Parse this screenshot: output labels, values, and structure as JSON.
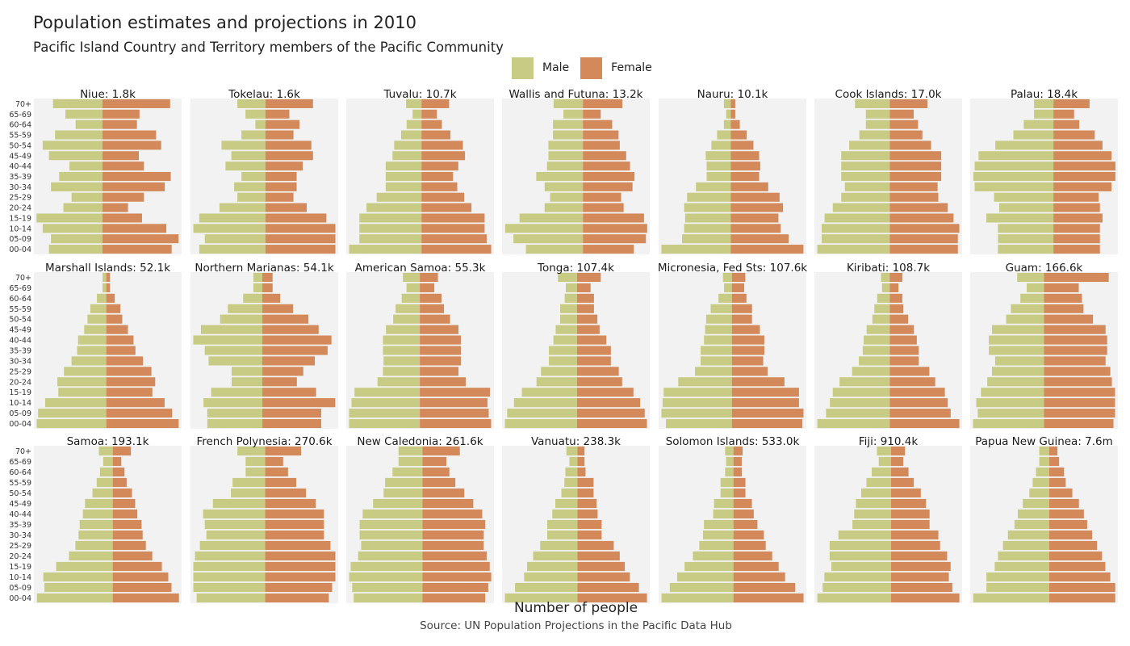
{
  "chart_data": {
    "type": "bar",
    "title": "Population estimates and projections in 2010",
    "subtitle": "Pacific Island Country and Territory members of the Pacific Community",
    "xlabel": "Number of people",
    "caption": "Source: UN Population Projections in the Pacific Data Hub",
    "legend": {
      "position": "top",
      "entries": [
        "Male",
        "Female"
      ]
    },
    "colors": {
      "Male": "#c8cb84",
      "Female": "#d4895a",
      "panel_bg": "#f2f2f2"
    },
    "age_groups": [
      "00-04",
      "05-09",
      "10-14",
      "15-19",
      "20-24",
      "25-29",
      "30-34",
      "35-39",
      "40-44",
      "45-49",
      "50-54",
      "55-59",
      "60-64",
      "65-69",
      "70+"
    ],
    "series_order": [
      "Male",
      "Female"
    ],
    "note": "Values are proportions of each country's total population by age group and sex, estimated from bar lengths; each panel has its own x scale.",
    "panels": [
      {
        "label": "Niue: 1.8k",
        "male": [
          0.0419,
          0.0403,
          0.0468,
          0.0516,
          0.0306,
          0.0242,
          0.0403,
          0.0339,
          0.0258,
          0.0419,
          0.0468,
          0.0371,
          0.021,
          0.029,
          0.0387
        ],
        "female": [
          0.0542,
          0.0596,
          0.05,
          0.031,
          0.02,
          0.0325,
          0.0488,
          0.0535,
          0.0325,
          0.0285,
          0.046,
          0.042,
          0.027,
          0.029,
          0.053
        ]
      },
      {
        "label": "Tokelau: 1.6k",
        "male": [
          0.0514,
          0.0471,
          0.056,
          0.0514,
          0.0357,
          0.0218,
          0.0243,
          0.0186,
          0.031,
          0.0265,
          0.0341,
          0.0186,
          0.0078,
          0.0155,
          0.0218
        ]
      },
      {
        "label": "Tuvalu: 10.7k",
        "male": [
          0.055,
          0.0472,
          0.0472,
          0.0472,
          0.0418,
          0.0341,
          0.0272,
          0.0272,
          0.0272,
          0.022,
          0.0208,
          0.0155,
          0.0113,
          0.0068,
          0.0117
        ]
      },
      {
        "label": "Wallis and Futuna: 13.2k",
        "male": [
          0.0448,
          0.0546,
          0.0611,
          0.0498,
          0.0301,
          0.0258,
          0.0301,
          0.0367,
          0.0282,
          0.0271,
          0.0271,
          0.0235,
          0.0235,
          0.0153,
          0.023
        ]
      },
      {
        "label": "Nauru: 10.1k",
        "male": [
          0.061,
          0.0428,
          0.041,
          0.0401,
          0.041,
          0.0384,
          0.0306,
          0.0212,
          0.0212,
          0.022,
          0.017,
          0.012,
          0.006,
          0.004,
          0.006
        ]
      },
      {
        "label": "Cook Islands: 17.0k",
        "male": [
          0.05,
          0.047,
          0.047,
          0.045,
          0.0393,
          0.0335,
          0.031,
          0.0335,
          0.0335,
          0.0335,
          0.028,
          0.021,
          0.0165,
          0.0165,
          0.024
        ]
      },
      {
        "label": "Palau: 18.4k",
        "male": [
          0.043,
          0.043,
          0.043,
          0.052,
          0.042,
          0.046,
          0.061,
          0.062,
          0.061,
          0.058,
          0.045,
          0.031,
          0.023,
          0.015,
          0.015
        ]
      },
      {
        "label": "Marshall Islands: 52.1k",
        "male": [
          0.074,
          0.0725,
          0.065,
          0.051,
          0.052,
          0.045,
          0.037,
          0.031,
          0.03,
          0.0235,
          0.02,
          0.017,
          0.01,
          0.004,
          0.004
        ]
      },
      {
        "label": "Northern Marianas: 54.1k",
        "male": [
          0.043,
          0.043,
          0.046,
          0.04,
          0.024,
          0.024,
          0.042,
          0.045,
          0.054,
          0.048,
          0.033,
          0.027,
          0.015,
          0.007,
          0.007
        ]
      },
      {
        "label": "American Samoa: 55.3k",
        "male": [
          0.0585,
          0.0585,
          0.0565,
          0.054,
          0.035,
          0.0305,
          0.03,
          0.0305,
          0.0305,
          0.028,
          0.022,
          0.02,
          0.015,
          0.011,
          0.014
        ]
      },
      {
        "label": "Tonga: 107.4k",
        "male": [
          0.064,
          0.062,
          0.056,
          0.049,
          0.036,
          0.032,
          0.025,
          0.025,
          0.021,
          0.019,
          0.015,
          0.015,
          0.011,
          0.01,
          0.017
        ]
      },
      {
        "label": "Micronesia, Fed Sts: 107.6k",
        "male": [
          0.059,
          0.063,
          0.062,
          0.061,
          0.048,
          0.033,
          0.028,
          0.028,
          0.025,
          0.024,
          0.023,
          0.019,
          0.012,
          0.007,
          0.008
        ]
      },
      {
        "label": "Kiribati: 108.7k",
        "male": [
          0.075,
          0.066,
          0.062,
          0.059,
          0.052,
          0.039,
          0.032,
          0.028,
          0.027,
          0.024,
          0.018,
          0.016,
          0.013,
          0.008,
          0.009
        ]
      },
      {
        "label": "Guam: 166.6k",
        "male": [
          0.045,
          0.042,
          0.043,
          0.04,
          0.036,
          0.033,
          0.031,
          0.035,
          0.035,
          0.033,
          0.024,
          0.021,
          0.015,
          0.011,
          0.017
        ]
      },
      {
        "label": "Samoa: 193.1k",
        "male": [
          0.071,
          0.064,
          0.065,
          0.053,
          0.041,
          0.035,
          0.032,
          0.031,
          0.028,
          0.026,
          0.019,
          0.015,
          0.012,
          0.009,
          0.013
        ]
      },
      {
        "label": "French Polynesia: 270.6k",
        "male": [
          0.042,
          0.044,
          0.044,
          0.044,
          0.043,
          0.04,
          0.036,
          0.037,
          0.038,
          0.032,
          0.021,
          0.02,
          0.012,
          0.012,
          0.017
        ]
      },
      {
        "label": "New Caledonia: 261.6k",
        "male": [
          0.046,
          0.047,
          0.049,
          0.048,
          0.043,
          0.041,
          0.042,
          0.042,
          0.04,
          0.033,
          0.026,
          0.025,
          0.02,
          0.016,
          0.016
        ]
      },
      {
        "label": "Vanuatu: 238.3k",
        "male": [
          0.072,
          0.062,
          0.053,
          0.05,
          0.044,
          0.037,
          0.03,
          0.03,
          0.025,
          0.022,
          0.016,
          0.013,
          0.012,
          0.008,
          0.011
        ]
      },
      {
        "label": "Solomon Islands: 533.0k",
        "male": [
          0.078,
          0.069,
          0.061,
          0.053,
          0.044,
          0.037,
          0.033,
          0.032,
          0.022,
          0.021,
          0.014,
          0.014,
          0.009,
          0.008,
          0.009
        ]
      },
      {
        "label": "Fiji: 910.4k",
        "male": [
          0.042,
          0.039,
          0.038,
          0.034,
          0.035,
          0.035,
          0.03,
          0.022,
          0.021,
          0.02,
          0.017,
          0.014,
          0.011,
          0.007,
          0.008
        ]
      },
      {
        "label": "Papua New Guinea: 7.6m",
        "male": [
          0.046,
          0.038,
          0.038,
          0.033,
          0.031,
          0.028,
          0.025,
          0.021,
          0.019,
          0.016,
          0.012,
          0.01,
          0.008,
          0.006,
          0.006
        ]
      }
    ],
    "female_values_by_panel": [
      [
        0.0542,
        0.0596,
        0.05,
        0.031,
        0.02,
        0.0325,
        0.0488,
        0.0535,
        0.0325,
        0.0285,
        0.046,
        0.042,
        0.027,
        0.029,
        0.053
      ],
      [
        0.0544,
        0.0544,
        0.0544,
        0.0474,
        0.0321,
        0.0218,
        0.0243,
        0.0243,
        0.029,
        0.037,
        0.0357,
        0.0218,
        0.0265,
        0.0186,
        0.037
      ],
      [
        0.053,
        0.0496,
        0.048,
        0.048,
        0.038,
        0.0325,
        0.0272,
        0.024,
        0.028,
        0.0331,
        0.0315,
        0.022,
        0.0155,
        0.0117,
        0.021
      ],
      [
        0.04,
        0.0495,
        0.0505,
        0.048,
        0.032,
        0.03,
        0.039,
        0.0405,
        0.037,
        0.034,
        0.029,
        0.028,
        0.023,
        0.014,
        0.031
      ],
      [
        0.064,
        0.051,
        0.044,
        0.042,
        0.046,
        0.043,
        0.033,
        0.025,
        0.026,
        0.025,
        0.02,
        0.014,
        0.008,
        0.004,
        0.004
      ]
    ]
  },
  "render_female": [
    [
      0.0542,
      0.0596,
      0.05,
      0.031,
      0.02,
      0.0325,
      0.0488,
      0.0535,
      0.0325,
      0.0285,
      0.046,
      0.042,
      0.027,
      0.029,
      0.053
    ],
    [
      0.0544,
      0.0544,
      0.0544,
      0.0474,
      0.0321,
      0.0218,
      0.0243,
      0.0243,
      0.029,
      0.037,
      0.0357,
      0.0218,
      0.0265,
      0.0186,
      0.037
    ],
    [
      0.053,
      0.0496,
      0.048,
      0.048,
      0.038,
      0.0325,
      0.0272,
      0.024,
      0.028,
      0.0331,
      0.0315,
      0.022,
      0.0155,
      0.0117,
      0.021
    ],
    [
      0.04,
      0.0495,
      0.0505,
      0.048,
      0.032,
      0.03,
      0.039,
      0.0405,
      0.037,
      0.034,
      0.029,
      0.028,
      0.023,
      0.014,
      0.031
    ],
    [
      0.064,
      0.051,
      0.044,
      0.042,
      0.046,
      0.043,
      0.033,
      0.025,
      0.026,
      0.025,
      0.02,
      0.014,
      0.008,
      0.004,
      0.004
    ],
    [
      0.047,
      0.047,
      0.048,
      0.044,
      0.04,
      0.0335,
      0.033,
      0.0355,
      0.0355,
      0.0355,
      0.0285,
      0.0225,
      0.0195,
      0.0165,
      0.026
    ],
    [
      0.036,
      0.036,
      0.036,
      0.038,
      0.036,
      0.035,
      0.045,
      0.048,
      0.048,
      0.045,
      0.038,
      0.032,
      0.02,
      0.016,
      0.028
    ],
    [
      0.077,
      0.07,
      0.062,
      0.049,
      0.052,
      0.048,
      0.039,
      0.031,
      0.029,
      0.023,
      0.017,
      0.015,
      0.009,
      0.004,
      0.004
    ],
    [
      0.046,
      0.046,
      0.057,
      0.042,
      0.027,
      0.032,
      0.041,
      0.051,
      0.054,
      0.044,
      0.036,
      0.024,
      0.014,
      0.008,
      0.008
    ],
    [
      0.059,
      0.057,
      0.056,
      0.058,
      0.038,
      0.032,
      0.034,
      0.034,
      0.034,
      0.032,
      0.025,
      0.02,
      0.018,
      0.012,
      0.015
    ],
    [
      0.062,
      0.06,
      0.056,
      0.05,
      0.04,
      0.037,
      0.03,
      0.03,
      0.026,
      0.02,
      0.018,
      0.015,
      0.015,
      0.012,
      0.021
    ],
    [
      0.063,
      0.064,
      0.06,
      0.06,
      0.047,
      0.032,
      0.028,
      0.029,
      0.029,
      0.025,
      0.018,
      0.018,
      0.013,
      0.011,
      0.012
    ],
    [
      0.072,
      0.063,
      0.06,
      0.057,
      0.047,
      0.041,
      0.03,
      0.03,
      0.028,
      0.025,
      0.019,
      0.014,
      0.013,
      0.009,
      0.013
    ],
    [
      0.044,
      0.045,
      0.045,
      0.045,
      0.043,
      0.042,
      0.039,
      0.04,
      0.04,
      0.039,
      0.031,
      0.025,
      0.024,
      0.022,
      0.041
    ],
    [
      0.062,
      0.055,
      0.052,
      0.046,
      0.037,
      0.031,
      0.028,
      0.027,
      0.023,
      0.021,
      0.018,
      0.013,
      0.011,
      0.008,
      0.017
    ],
    [
      0.039,
      0.041,
      0.043,
      0.043,
      0.043,
      0.04,
      0.036,
      0.036,
      0.036,
      0.031,
      0.025,
      0.019,
      0.014,
      0.011,
      0.022
    ],
    [
      0.042,
      0.044,
      0.046,
      0.045,
      0.043,
      0.041,
      0.041,
      0.042,
      0.04,
      0.034,
      0.028,
      0.022,
      0.018,
      0.016,
      0.025
    ],
    [
      0.069,
      0.061,
      0.052,
      0.047,
      0.042,
      0.036,
      0.024,
      0.024,
      0.02,
      0.019,
      0.016,
      0.016,
      0.008,
      0.007,
      0.007
    ],
    [
      0.076,
      0.067,
      0.056,
      0.049,
      0.042,
      0.035,
      0.033,
      0.026,
      0.022,
      0.02,
      0.013,
      0.013,
      0.009,
      0.009,
      0.01
    ],
    [
      0.039,
      0.035,
      0.033,
      0.034,
      0.032,
      0.028,
      0.027,
      0.022,
      0.022,
      0.02,
      0.017,
      0.013,
      0.01,
      0.007,
      0.008
    ],
    [
      0.04,
      0.04,
      0.037,
      0.034,
      0.032,
      0.029,
      0.026,
      0.023,
      0.021,
      0.018,
      0.014,
      0.01,
      0.009,
      0.006,
      0.005
    ]
  ],
  "render_male_override": {
    "1": [
      0.0514,
      0.0471,
      0.056,
      0.0514,
      0.0357,
      0.0218,
      0.0243,
      0.0186,
      0.031,
      0.0265,
      0.0341,
      0.0186,
      0.0078,
      0.0155,
      0.0218
    ]
  }
}
